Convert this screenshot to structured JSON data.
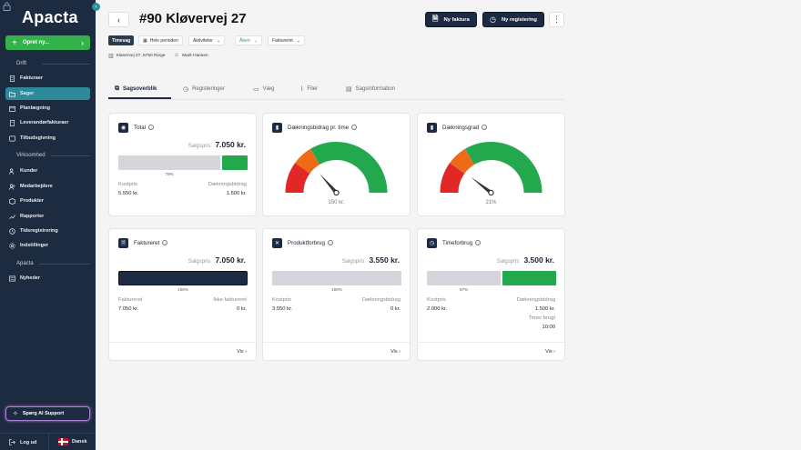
{
  "app": {
    "name": "Apacta"
  },
  "sidebar": {
    "create_label": "Opret ny...",
    "sections": [
      {
        "title": "Drift"
      },
      {
        "title": "Virksomhed"
      },
      {
        "title": "Apacta"
      }
    ],
    "items": [
      {
        "label": "Fakturaer"
      },
      {
        "label": "Sager"
      },
      {
        "label": "Planlægning"
      },
      {
        "label": "Leverandørfakturaer"
      },
      {
        "label": "Tilbudsgivning"
      },
      {
        "label": "Kunder"
      },
      {
        "label": "Medarbejdere"
      },
      {
        "label": "Produkter"
      },
      {
        "label": "Rapporter"
      },
      {
        "label": "Tidsregistrering"
      },
      {
        "label": "Indstillinger"
      },
      {
        "label": "Nyheder"
      }
    ],
    "ai_support": "Spørg AI Support",
    "logout": "Log ud",
    "language": "Dansk"
  },
  "header": {
    "title": "#90 Kløvervej 27",
    "new_invoice": "Ny faktura",
    "new_registration": "Ny registering",
    "more": "⋮"
  },
  "filters": {
    "type_tag": "Timesag",
    "period": "Hele perioden",
    "activities": "Aktiviteter",
    "status": "Åben",
    "invoiced": "Faktureret"
  },
  "meta": {
    "address": "Kløvervej 27, 5750 Ringe",
    "person": "Mark Hansen"
  },
  "tabs": [
    {
      "label": "Sagsoverblik"
    },
    {
      "label": "Registeringer"
    },
    {
      "label": "Væg"
    },
    {
      "label": "Filer"
    },
    {
      "label": "Sagsinformation"
    }
  ],
  "cards": {
    "total": {
      "title": "Total",
      "sales_label": "Salgspris",
      "sales_value": "7.050 kr.",
      "percent_label": "79%",
      "percent": 79,
      "cost_label": "Kostpris",
      "cost_value": "5.550 kr.",
      "margin_label": "Dækningsbidrag",
      "margin_value": "1.500 kr."
    },
    "margin_per_hour": {
      "title": "Dækningsbidrag pr. time",
      "value_label": "150 kr.",
      "needle": 0.27
    },
    "margin_rate": {
      "title": "Dækningsgrad",
      "value_label": "21%",
      "needle": 0.21
    },
    "invoiced": {
      "title": "Faktureret",
      "sales_label": "Salgspris",
      "sales_value": "7.050 kr.",
      "percent_label": "100%",
      "percent": 100,
      "left_label": "Faktureret",
      "left_value": "7.050 kr.",
      "right_label": "Ikke faktureret",
      "right_value": "0 kr.",
      "link": "Vis"
    },
    "products": {
      "title": "Produktforbrug",
      "sales_label": "Salgspris",
      "sales_value": "3.550 kr.",
      "percent_label": "100%",
      "percent": 100,
      "cost_label": "Kostpris",
      "cost_value": "3.550 kr.",
      "margin_label": "Dækningsbidrag",
      "margin_value": "0 kr.",
      "link": "Vis"
    },
    "time": {
      "title": "Timeforbrug",
      "sales_label": "Salgspris",
      "sales_value": "3.500 kr.",
      "percent_label": "57%",
      "percent": 57,
      "cost_label": "Kostpris",
      "cost_value": "2.000 kr.",
      "margin_label": "Dækningsbidrag",
      "margin_value": "1.500 kr.",
      "hours_label": "Timer brugt",
      "hours_value": "10:00",
      "link": "Vis"
    }
  },
  "colors": {
    "navy": "#1d2a44",
    "green": "#23a84e",
    "orange": "#ee6a17",
    "red": "#e12826",
    "teal": "#2e8a9b"
  }
}
